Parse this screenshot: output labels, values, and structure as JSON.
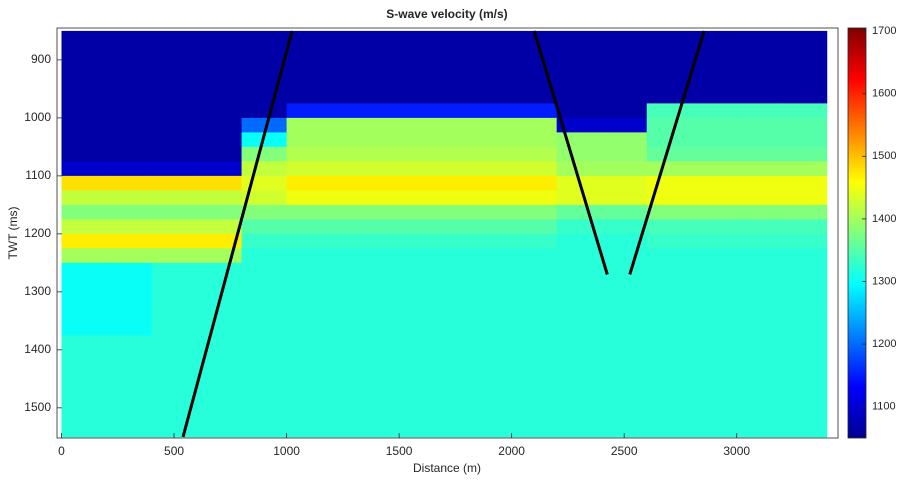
{
  "chart_data": {
    "type": "heatmap",
    "title": "S-wave velocity (m/s)",
    "xlabel": "Distance (m)",
    "ylabel": "TWT (ms)",
    "xlim": [
      -20,
      3450
    ],
    "ylim": [
      845,
      1552
    ],
    "y_reversed": true,
    "xticks": [
      0,
      500,
      1000,
      1500,
      2000,
      2500,
      3000
    ],
    "yticks": [
      900,
      1000,
      1100,
      1200,
      1300,
      1400,
      1500
    ],
    "clim": [
      1050,
      1705
    ],
    "cticks": [
      1100,
      1200,
      1300,
      1400,
      1500,
      1600,
      1700
    ],
    "colormap": "jet",
    "xbins": [
      0,
      200,
      400,
      600,
      800,
      1000,
      1200,
      1400,
      1600,
      1800,
      2000,
      2200,
      2400,
      2600,
      2800,
      3000,
      3200,
      3400
    ],
    "ybins": [
      850,
      875,
      900,
      925,
      950,
      975,
      1000,
      1025,
      1050,
      1075,
      1100,
      1125,
      1150,
      1175,
      1200,
      1225,
      1250,
      1275,
      1300,
      1325,
      1350,
      1375,
      1400,
      1425,
      1450,
      1475,
      1500,
      1525,
      1550
    ],
    "values": [
      [
        1075,
        1075,
        1075,
        1075,
        1075,
        1075,
        1075,
        1075,
        1075,
        1075,
        1075,
        1075,
        1075,
        1075,
        1075,
        1075,
        1075
      ],
      [
        1075,
        1075,
        1075,
        1075,
        1075,
        1075,
        1075,
        1075,
        1075,
        1075,
        1075,
        1075,
        1075,
        1075,
        1075,
        1075,
        1075
      ],
      [
        1075,
        1075,
        1075,
        1075,
        1075,
        1075,
        1075,
        1075,
        1075,
        1075,
        1075,
        1075,
        1075,
        1075,
        1075,
        1075,
        1075
      ],
      [
        1075,
        1075,
        1075,
        1075,
        1075,
        1075,
        1075,
        1075,
        1075,
        1075,
        1075,
        1075,
        1075,
        1075,
        1075,
        1075,
        1075
      ],
      [
        1075,
        1075,
        1075,
        1075,
        1075,
        1075,
        1075,
        1075,
        1075,
        1075,
        1075,
        1075,
        1075,
        1075,
        1075,
        1075,
        1075
      ],
      [
        1075,
        1075,
        1075,
        1075,
        1075,
        1150,
        1150,
        1150,
        1150,
        1150,
        1150,
        1075,
        1075,
        1340,
        1340,
        1340,
        1340
      ],
      [
        1075,
        1075,
        1075,
        1075,
        1200,
        1400,
        1400,
        1400,
        1400,
        1400,
        1400,
        1100,
        1100,
        1350,
        1350,
        1350,
        1350
      ],
      [
        1075,
        1075,
        1075,
        1075,
        1300,
        1400,
        1400,
        1400,
        1400,
        1400,
        1400,
        1390,
        1390,
        1350,
        1350,
        1350,
        1350
      ],
      [
        1075,
        1075,
        1075,
        1075,
        1380,
        1410,
        1410,
        1410,
        1410,
        1410,
        1410,
        1390,
        1390,
        1360,
        1360,
        1360,
        1360
      ],
      [
        1100,
        1100,
        1100,
        1100,
        1420,
        1430,
        1430,
        1430,
        1430,
        1430,
        1430,
        1400,
        1400,
        1400,
        1400,
        1400,
        1400
      ],
      [
        1480,
        1480,
        1480,
        1480,
        1440,
        1470,
        1470,
        1470,
        1470,
        1470,
        1470,
        1440,
        1440,
        1450,
        1450,
        1450,
        1450
      ],
      [
        1420,
        1420,
        1420,
        1420,
        1430,
        1450,
        1450,
        1450,
        1450,
        1450,
        1450,
        1440,
        1440,
        1450,
        1450,
        1450,
        1450
      ],
      [
        1380,
        1380,
        1380,
        1380,
        1380,
        1380,
        1380,
        1380,
        1380,
        1380,
        1380,
        1360,
        1360,
        1380,
        1380,
        1380,
        1380
      ],
      [
        1420,
        1420,
        1420,
        1420,
        1350,
        1350,
        1350,
        1350,
        1350,
        1350,
        1350,
        1330,
        1330,
        1340,
        1340,
        1340,
        1340
      ],
      [
        1470,
        1470,
        1470,
        1470,
        1330,
        1330,
        1330,
        1330,
        1330,
        1330,
        1330,
        1320,
        1320,
        1330,
        1330,
        1330,
        1330
      ],
      [
        1400,
        1400,
        1400,
        1400,
        1320,
        1320,
        1320,
        1320,
        1320,
        1320,
        1320,
        1320,
        1320,
        1320,
        1320,
        1320,
        1320
      ],
      [
        1300,
        1300,
        1320,
        1320,
        1320,
        1320,
        1320,
        1320,
        1320,
        1320,
        1320,
        1320,
        1320,
        1320,
        1320,
        1320,
        1320
      ],
      [
        1300,
        1300,
        1320,
        1320,
        1320,
        1320,
        1320,
        1320,
        1320,
        1320,
        1320,
        1320,
        1320,
        1320,
        1320,
        1320,
        1320
      ],
      [
        1300,
        1300,
        1320,
        1320,
        1320,
        1320,
        1320,
        1320,
        1320,
        1320,
        1320,
        1320,
        1320,
        1320,
        1320,
        1320,
        1320
      ],
      [
        1300,
        1300,
        1320,
        1320,
        1320,
        1320,
        1320,
        1320,
        1320,
        1320,
        1320,
        1320,
        1320,
        1320,
        1320,
        1320,
        1320
      ],
      [
        1300,
        1300,
        1320,
        1320,
        1320,
        1320,
        1320,
        1320,
        1320,
        1320,
        1320,
        1320,
        1320,
        1320,
        1320,
        1320,
        1320
      ],
      [
        1320,
        1320,
        1320,
        1320,
        1320,
        1320,
        1320,
        1320,
        1320,
        1320,
        1320,
        1320,
        1320,
        1320,
        1320,
        1320,
        1320
      ],
      [
        1320,
        1320,
        1320,
        1320,
        1320,
        1320,
        1320,
        1320,
        1320,
        1320,
        1320,
        1320,
        1320,
        1320,
        1320,
        1320,
        1320
      ],
      [
        1320,
        1320,
        1320,
        1320,
        1320,
        1320,
        1320,
        1320,
        1320,
        1320,
        1320,
        1320,
        1320,
        1320,
        1320,
        1320,
        1320
      ],
      [
        1320,
        1320,
        1320,
        1320,
        1320,
        1320,
        1320,
        1320,
        1320,
        1320,
        1320,
        1320,
        1320,
        1320,
        1320,
        1320,
        1320
      ],
      [
        1320,
        1320,
        1320,
        1320,
        1320,
        1320,
        1320,
        1320,
        1320,
        1320,
        1320,
        1320,
        1320,
        1320,
        1320,
        1320,
        1320
      ],
      [
        1320,
        1320,
        1320,
        1320,
        1320,
        1320,
        1320,
        1320,
        1320,
        1320,
        1320,
        1320,
        1320,
        1320,
        1320,
        1320,
        1320
      ],
      [
        1320,
        1320,
        1320,
        1320,
        1320,
        1320,
        1320,
        1320,
        1320,
        1320,
        1320,
        1320,
        1320,
        1320,
        1320,
        1320,
        1320
      ]
    ],
    "faults": [
      {
        "x": [
          540,
          1025
        ],
        "y": [
          1550,
          850
        ]
      },
      {
        "x": [
          2100,
          2425
        ],
        "y": [
          850,
          1270
        ]
      },
      {
        "x": [
          2525,
          2855
        ],
        "y": [
          1270,
          850
        ]
      }
    ],
    "fault_color": "#000000"
  }
}
